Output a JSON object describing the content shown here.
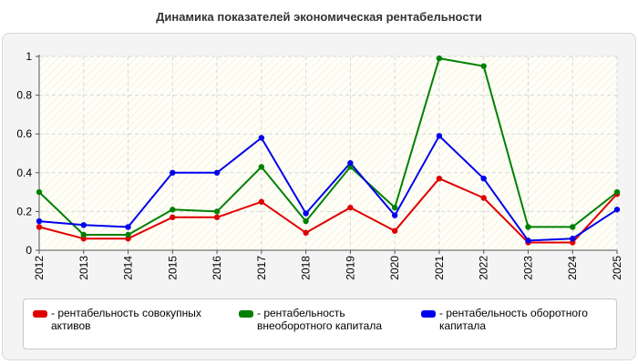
{
  "title": "Динамика показателей экономическая рентабельности",
  "chart_data": {
    "type": "line",
    "x": [
      "2012",
      "2013",
      "2014",
      "2015",
      "2016",
      "2017",
      "2018",
      "2019",
      "2020",
      "2021",
      "2022",
      "2023",
      "2024",
      "2025"
    ],
    "ylim": [
      0,
      1
    ],
    "yticks": [
      "0",
      "0.2",
      "0.4",
      "0.6",
      "0.8",
      "1"
    ],
    "grid": true,
    "legend_position": "bottom",
    "series": [
      {
        "name": "- рентабельность совокупных активов",
        "color": "#e00000",
        "values": [
          0.12,
          0.06,
          0.06,
          0.17,
          0.17,
          0.25,
          0.09,
          0.22,
          0.1,
          0.37,
          0.27,
          0.04,
          0.04,
          0.29
        ]
      },
      {
        "name": "- рентабельность внеоборотного капитала",
        "color": "#008000",
        "values": [
          0.3,
          0.08,
          0.08,
          0.21,
          0.2,
          0.43,
          0.15,
          0.43,
          0.22,
          0.99,
          0.95,
          0.12,
          0.12,
          0.3
        ]
      },
      {
        "name": "- рентабельность оборотного капитала",
        "color": "#0000ee",
        "values": [
          0.15,
          0.13,
          0.12,
          0.4,
          0.4,
          0.58,
          0.19,
          0.45,
          0.18,
          0.59,
          0.37,
          0.05,
          0.06,
          0.21
        ]
      }
    ]
  }
}
